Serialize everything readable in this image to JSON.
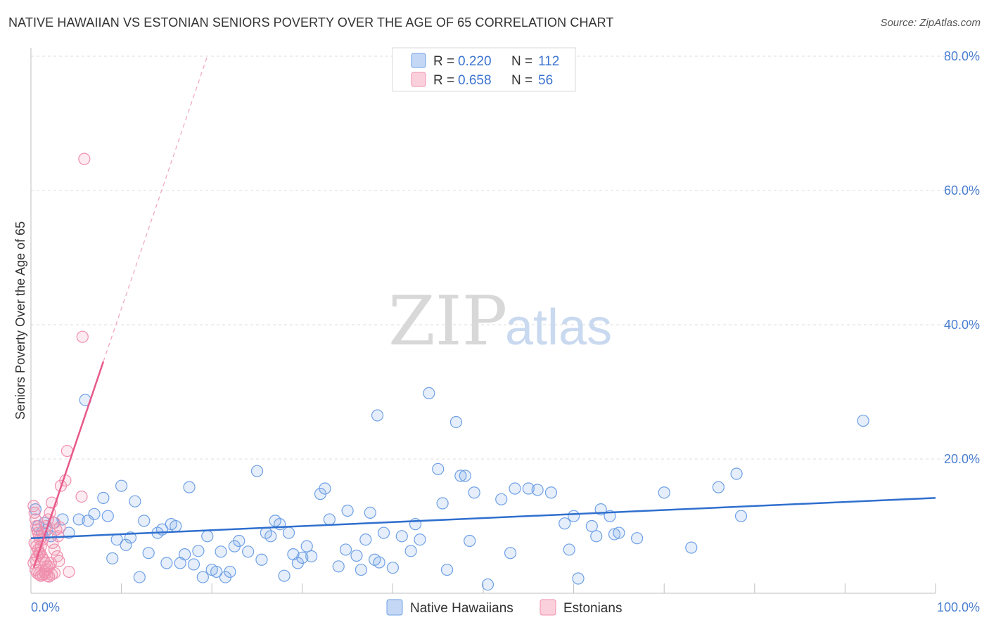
{
  "title": "NATIVE HAWAIIAN VS ESTONIAN SENIORS POVERTY OVER THE AGE OF 65 CORRELATION CHART",
  "source": "Source: ZipAtlas.com",
  "watermark": {
    "part1": "ZIP",
    "part2": "atlas"
  },
  "legend": {
    "rows": [
      {
        "r_label": "R = ",
        "r_value": "0.220",
        "n_label": "N = ",
        "n_value": "112",
        "color": "#6fa0e6"
      },
      {
        "r_label": "R = ",
        "r_value": "0.658",
        "n_label": "N = ",
        "n_value": " 56",
        "color": "#f08fae"
      }
    ]
  },
  "chart_data": {
    "type": "scatter",
    "title": "NATIVE HAWAIIAN VS ESTONIAN SENIORS POVERTY OVER THE AGE OF 65 CORRELATION CHART",
    "xlabel": "",
    "ylabel": "Seniors Poverty Over the Age of 65",
    "xlim": [
      0,
      100
    ],
    "ylim": [
      0,
      80
    ],
    "grid": true,
    "legend_position": "top-center",
    "x_tick_labels": [
      "0.0%",
      "100.0%"
    ],
    "y_tick_labels": [
      {
        "value": 80,
        "label": "80.0%"
      },
      {
        "value": 60,
        "label": "60.0%"
      },
      {
        "value": 40,
        "label": "40.0%"
      },
      {
        "value": 20,
        "label": "20.0%"
      }
    ],
    "series": [
      {
        "name": "Native Hawaiians",
        "color": "#6fa0e6",
        "line_color": "#2f6fce",
        "trend": {
          "x": [
            0,
            100
          ],
          "y": [
            8.2,
            14.2
          ]
        },
        "points": [
          [
            0.5,
            12.5
          ],
          [
            0.8,
            10
          ],
          [
            1.2,
            9
          ],
          [
            1.5,
            10.5
          ],
          [
            1.8,
            9.5
          ],
          [
            2.2,
            8.5
          ],
          [
            2.5,
            10.5
          ],
          [
            3.5,
            11
          ],
          [
            4.2,
            9
          ],
          [
            5.3,
            11
          ],
          [
            6.3,
            10.8
          ],
          [
            7,
            11.8
          ],
          [
            8,
            14.2
          ],
          [
            8.5,
            11.5
          ],
          [
            9,
            5.2
          ],
          [
            9.5,
            8
          ],
          [
            10,
            16
          ],
          [
            10.5,
            7.2
          ],
          [
            11,
            8.3
          ],
          [
            11.5,
            13.7
          ],
          [
            12,
            2.4
          ],
          [
            12.5,
            10.8
          ],
          [
            13,
            6
          ],
          [
            14,
            9
          ],
          [
            14.5,
            9.5
          ],
          [
            15,
            4.5
          ],
          [
            15.5,
            10.3
          ],
          [
            16,
            10
          ],
          [
            16.5,
            4.5
          ],
          [
            17,
            5.8
          ],
          [
            17.5,
            15.8
          ],
          [
            18,
            4.3
          ],
          [
            18.5,
            6.3
          ],
          [
            19,
            2.4
          ],
          [
            19.5,
            8.5
          ],
          [
            20,
            3.5
          ],
          [
            20.5,
            3.2
          ],
          [
            21,
            6.2
          ],
          [
            21.5,
            2.4
          ],
          [
            22,
            3.2
          ],
          [
            22.5,
            7
          ],
          [
            23,
            7.8
          ],
          [
            24,
            6.2
          ],
          [
            25,
            18.2
          ],
          [
            25.5,
            5
          ],
          [
            26,
            9
          ],
          [
            26.5,
            8.5
          ],
          [
            27,
            10.8
          ],
          [
            27.5,
            10.3
          ],
          [
            28,
            2.6
          ],
          [
            28.5,
            9
          ],
          [
            29,
            5.8
          ],
          [
            29.5,
            4.5
          ],
          [
            30,
            5.3
          ],
          [
            30.5,
            7
          ],
          [
            31,
            5.5
          ],
          [
            32,
            14.8
          ],
          [
            32.5,
            15.6
          ],
          [
            33,
            11
          ],
          [
            34,
            4
          ],
          [
            35,
            12.3
          ],
          [
            34.8,
            6.5
          ],
          [
            36,
            5.6
          ],
          [
            36.5,
            3.5
          ],
          [
            37,
            8
          ],
          [
            37.5,
            12
          ],
          [
            38,
            5
          ],
          [
            38.5,
            4.6
          ],
          [
            39,
            9
          ],
          [
            38.3,
            26.5
          ],
          [
            40,
            3.8
          ],
          [
            41,
            8.5
          ],
          [
            42,
            6.3
          ],
          [
            42.5,
            10.3
          ],
          [
            43,
            8
          ],
          [
            44,
            29.8
          ],
          [
            45,
            18.5
          ],
          [
            46,
            3.5
          ],
          [
            45.5,
            13.4
          ],
          [
            47,
            25.5
          ],
          [
            47.5,
            17.5
          ],
          [
            48,
            17.5
          ],
          [
            49,
            15
          ],
          [
            48.5,
            7.8
          ],
          [
            50.5,
            1.3
          ],
          [
            52,
            14
          ],
          [
            53,
            6
          ],
          [
            53.5,
            15.6
          ],
          [
            55,
            15.6
          ],
          [
            56,
            15.4
          ],
          [
            57.5,
            15
          ],
          [
            59,
            10.4
          ],
          [
            59.5,
            6.5
          ],
          [
            60,
            11.5
          ],
          [
            60.5,
            2.2
          ],
          [
            62,
            10
          ],
          [
            62.5,
            8.5
          ],
          [
            63,
            12.5
          ],
          [
            64,
            11.5
          ],
          [
            64.5,
            8.8
          ],
          [
            65,
            9
          ],
          [
            67,
            8.2
          ],
          [
            70,
            15
          ],
          [
            73,
            6.8
          ],
          [
            76,
            15.8
          ],
          [
            78,
            17.8
          ],
          [
            78.5,
            11.5
          ],
          [
            92,
            25.7
          ],
          [
            6,
            28.8
          ]
        ]
      },
      {
        "name": "Estonians",
        "color": "#f08fae",
        "line_color": "#e8588a",
        "trend": {
          "x": [
            0.3,
            8.0
          ],
          "y": [
            3.8,
            34.5
          ]
        },
        "trend_dashed": {
          "x": [
            8.0,
            19.5
          ],
          "y": [
            34.5,
            80
          ]
        },
        "points": [
          [
            0.3,
            13
          ],
          [
            0.4,
            12
          ],
          [
            0.5,
            11
          ],
          [
            0.6,
            10
          ],
          [
            0.7,
            9.5
          ],
          [
            0.8,
            9
          ],
          [
            0.9,
            8.5
          ],
          [
            1,
            8
          ],
          [
            0.4,
            7.5
          ],
          [
            0.6,
            7
          ],
          [
            0.8,
            6.5
          ],
          [
            1,
            6
          ],
          [
            1.2,
            5.5
          ],
          [
            1.4,
            5
          ],
          [
            1.6,
            4.5
          ],
          [
            1.8,
            4
          ],
          [
            0.5,
            3.5
          ],
          [
            0.7,
            3
          ],
          [
            0.9,
            2.8
          ],
          [
            1.1,
            2.6
          ],
          [
            1.3,
            2.8
          ],
          [
            1.5,
            3.2
          ],
          [
            1.7,
            3.5
          ],
          [
            2,
            4
          ],
          [
            2.2,
            4.5
          ],
          [
            0.3,
            4.5
          ],
          [
            0.5,
            5
          ],
          [
            0.7,
            5.5
          ],
          [
            0.9,
            6
          ],
          [
            1.1,
            7
          ],
          [
            1.3,
            8
          ],
          [
            1.5,
            9
          ],
          [
            1.7,
            10
          ],
          [
            1.9,
            11
          ],
          [
            2.1,
            12
          ],
          [
            2.3,
            13.5
          ],
          [
            2.6,
            10.5
          ],
          [
            2.8,
            9.5
          ],
          [
            3,
            8.5
          ],
          [
            3.2,
            9.8
          ],
          [
            2.4,
            7.5
          ],
          [
            2.6,
            6.5
          ],
          [
            2.9,
            5.5
          ],
          [
            3.1,
            4.8
          ],
          [
            1.6,
            2.9
          ],
          [
            1.8,
            2.6
          ],
          [
            2,
            2.5
          ],
          [
            2.3,
            2.8
          ],
          [
            2.6,
            3
          ],
          [
            3.3,
            16
          ],
          [
            3.8,
            16.8
          ],
          [
            4,
            21.2
          ],
          [
            4.2,
            3.2
          ],
          [
            5.6,
            14.4
          ],
          [
            5.7,
            38.2
          ],
          [
            5.9,
            64.7
          ]
        ]
      }
    ]
  }
}
